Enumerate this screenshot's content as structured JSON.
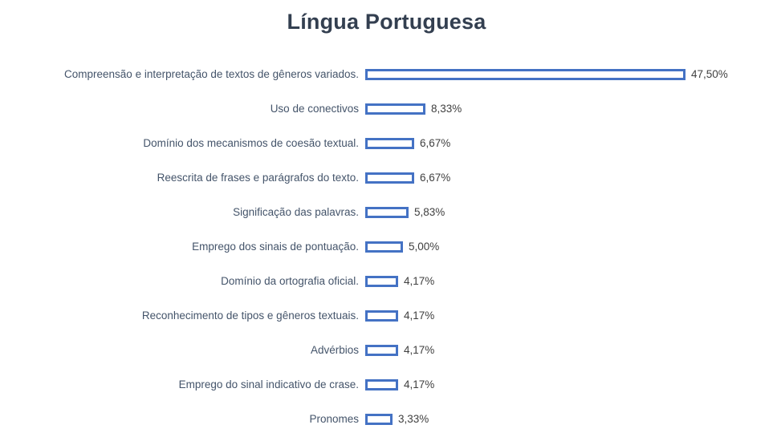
{
  "title": "Língua Portuguesa",
  "colors": {
    "bar_border": "#4472c4",
    "title_text": "#333f50",
    "label_text": "#44546a",
    "value_text": "#404040"
  },
  "chart_data": {
    "type": "bar",
    "orientation": "horizontal",
    "title": "Língua Portuguesa",
    "xlabel": "",
    "ylabel": "",
    "xlim": [
      0,
      50
    ],
    "grid": false,
    "legend": "none",
    "categories": [
      "Compreensão e interpretação de textos de gêneros variados.",
      "Uso de conectivos",
      "Domínio dos mecanismos de coesão textual.",
      "Reescrita de frases e parágrafos do texto.",
      "Significação das palavras.",
      "Emprego dos sinais de pontuação.",
      "Domínio da ortografia oficial.",
      "Reconhecimento de tipos e gêneros textuais.",
      "Advérbios",
      "Emprego do sinal indicativo de crase.",
      "Pronomes"
    ],
    "values": [
      47.5,
      8.33,
      6.67,
      6.67,
      5.83,
      5.0,
      4.17,
      4.17,
      4.17,
      4.17,
      3.33
    ],
    "value_labels": [
      "47,50%",
      "8,33%",
      "6,67%",
      "6,67%",
      "5,83%",
      "5,00%",
      "4,17%",
      "4,17%",
      "4,17%",
      "4,17%",
      "3,33%"
    ]
  }
}
